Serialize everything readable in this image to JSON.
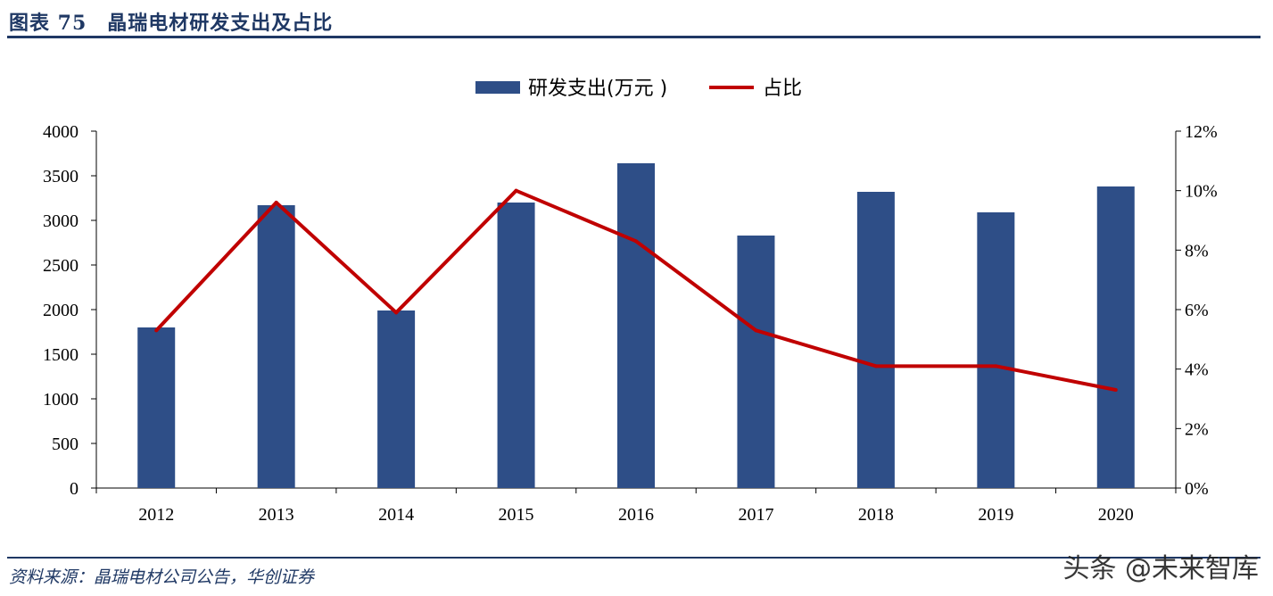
{
  "header": {
    "title": "图表 75　晶瑞电材研发支出及占比"
  },
  "footer": {
    "source": "资料来源：晶瑞电材公司公告，华创证券",
    "watermark": "头条 @未来智库"
  },
  "chart_data": {
    "type": "bar+line",
    "categories": [
      "2012",
      "2013",
      "2014",
      "2015",
      "2016",
      "2017",
      "2018",
      "2019",
      "2020"
    ],
    "series": [
      {
        "name": "研发支出(万元 )",
        "type": "bar",
        "axis": "left",
        "color": "#2e4e87",
        "values": [
          1800,
          3170,
          1990,
          3200,
          3640,
          2830,
          3320,
          3090,
          3380
        ]
      },
      {
        "name": "占比",
        "type": "line",
        "axis": "right",
        "color": "#c00000",
        "values": [
          5.3,
          9.6,
          5.9,
          10.0,
          8.3,
          5.3,
          4.1,
          4.1,
          3.3
        ]
      }
    ],
    "y_left": {
      "min": 0,
      "max": 4000,
      "ticks": [
        "0",
        "500",
        "1000",
        "1500",
        "2000",
        "2500",
        "3000",
        "3500",
        "4000"
      ]
    },
    "y_right": {
      "min": 0,
      "max": 12,
      "ticks": [
        "0%",
        "2%",
        "4%",
        "6%",
        "8%",
        "10%",
        "12%"
      ]
    },
    "legend_position": "top-center",
    "grid": false
  }
}
